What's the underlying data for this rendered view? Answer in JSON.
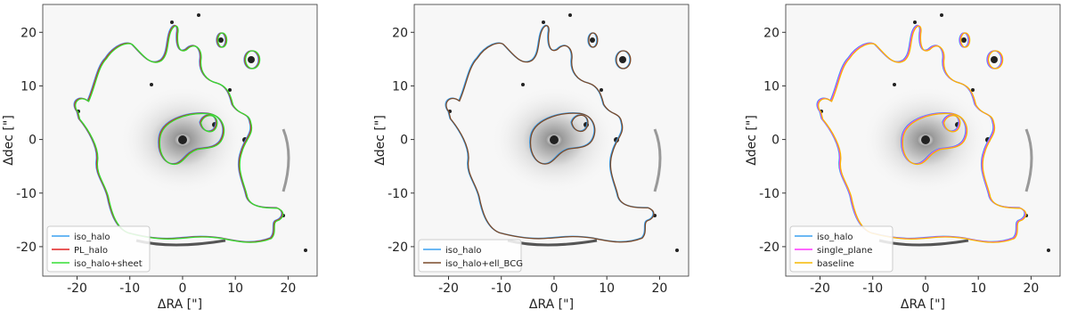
{
  "chart_data": [
    {
      "type": "image",
      "xlabel": "ΔRA [\"]",
      "ylabel": "Δdec [\"]",
      "xlim": [
        -26.5,
        25.5
      ],
      "ylim": [
        -25.5,
        25.2
      ],
      "xticks": [
        -20,
        -10,
        0,
        10,
        20
      ],
      "yticks": [
        -20,
        -10,
        0,
        10,
        20
      ],
      "legend_loc": "lower left",
      "legend": [
        {
          "name": "iso_halo",
          "color": "#3aa0f0"
        },
        {
          "name": "PL_halo",
          "color": "#e02020"
        },
        {
          "name": "iso_halo+sheet",
          "color": "#33dd33"
        }
      ]
    },
    {
      "type": "image",
      "xlabel": "ΔRA [\"]",
      "ylabel": "Δdec [\"]",
      "xlim": [
        -26.5,
        25.5
      ],
      "ylim": [
        -25.5,
        25.2
      ],
      "xticks": [
        -20,
        -10,
        0,
        10,
        20
      ],
      "yticks": [
        -20,
        -10,
        0,
        10,
        20
      ],
      "legend_loc": "lower left",
      "legend": [
        {
          "name": "iso_halo",
          "color": "#3aa0f0"
        },
        {
          "name": "iso_halo+ell_BCG",
          "color": "#7a4a2a"
        }
      ]
    },
    {
      "type": "image",
      "xlabel": "ΔRA [\"]",
      "ylabel": "Δdec [\"]",
      "xlim": [
        -26.5,
        25.5
      ],
      "ylim": [
        -25.5,
        25.2
      ],
      "xticks": [
        -20,
        -10,
        0,
        10,
        20
      ],
      "yticks": [
        -20,
        -10,
        0,
        10,
        20
      ],
      "legend_loc": "lower left",
      "legend": [
        {
          "name": "iso_halo",
          "color": "#3aa0f0"
        },
        {
          "name": "single_plane",
          "color": "#ff33ff"
        },
        {
          "name": "baseline",
          "color": "#f5b800"
        }
      ]
    }
  ]
}
